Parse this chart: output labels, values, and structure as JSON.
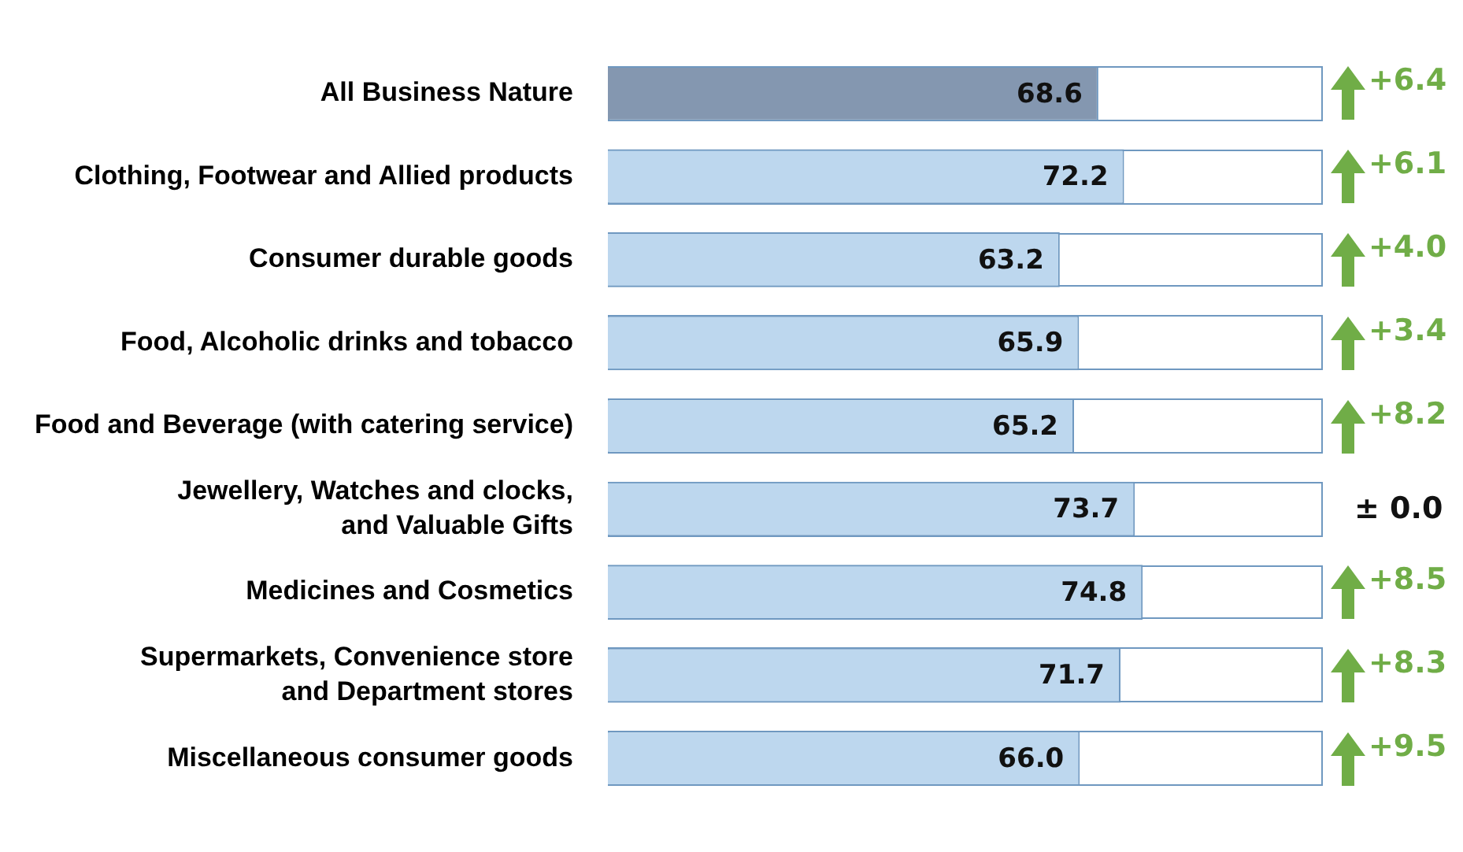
{
  "chart_data": {
    "type": "bar",
    "orientation": "horizontal",
    "categories": [
      "All Business Nature",
      "Clothing, Footwear and Allied products",
      "Consumer durable goods",
      "Food, Alcoholic drinks and tobacco",
      "Food and Beverage (with catering service)",
      "Jewellery, Watches and clocks, and Valuable Gifts",
      "Medicines and Cosmetics",
      "Supermarkets, Convenience store and Department stores",
      "Miscellaneous consumer goods"
    ],
    "values": [
      68.6,
      72.2,
      63.2,
      65.9,
      65.2,
      73.7,
      74.8,
      71.7,
      66.0
    ],
    "value_labels": [
      "68.6",
      "72.2",
      "63.2",
      "65.9",
      "65.2",
      "73.7",
      "74.8",
      "71.7",
      "66.0"
    ],
    "colors": [
      "#8497b0",
      "#bdd7ee",
      "#bdd7ee",
      "#bdd7ee",
      "#bdd7ee",
      "#bdd7ee",
      "#bdd7ee",
      "#bdd7ee",
      "#bdd7ee"
    ],
    "xlim": [
      0,
      100
    ],
    "tick_labels": "y",
    "grid": false,
    "legend": false,
    "annotations": [
      "+6.4",
      "+6.1",
      "+4.0",
      "+3.4",
      "+8.2",
      "± 0.0",
      "+8.5",
      "+8.3",
      "+9.5"
    ]
  }
}
